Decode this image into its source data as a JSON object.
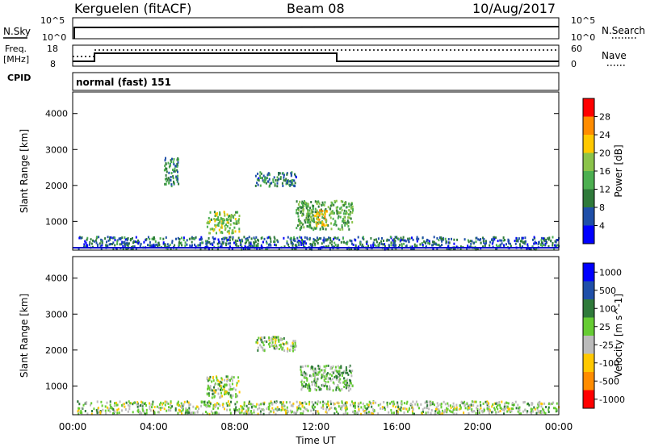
{
  "header": {
    "station": "Kerguelen (fitACF)",
    "beam": "Beam 08",
    "date": "10/Aug/2017"
  },
  "panels": {
    "nsky": {
      "label": "N.Sky",
      "ticks": [
        "10^5",
        "10^0"
      ],
      "right_label": "N.Search",
      "right_ticks": [
        "10^5",
        "10^0"
      ]
    },
    "freq": {
      "label_line1": "Freq.",
      "label_line2": "[MHz]",
      "ticks": [
        "18",
        "8"
      ],
      "right_label": "Nave",
      "right_ticks": [
        "60",
        "0"
      ]
    },
    "cpid": {
      "label": "CPID",
      "text": "normal (fast) 151"
    }
  },
  "colors": {
    "power_scale": [
      "#0000ff",
      "#1f4fa8",
      "#2f7a3a",
      "#4caf50",
      "#8bc34a",
      "#ffc800",
      "#ff8c00",
      "#ff0000"
    ],
    "velocity_scale": [
      "#0000ff",
      "#1f4fa8",
      "#2f7a3a",
      "#66cc33",
      "#bbbbbb",
      "#ffc800",
      "#ff8c00",
      "#ff0000"
    ]
  },
  "chart_data": [
    {
      "type": "heatmap",
      "title": "",
      "xlabel": "",
      "ylabel": "Slant Range [km]",
      "xlim": [
        0,
        24
      ],
      "ylim": [
        200,
        4600
      ],
      "x_tick_labels": [],
      "y_ticks": [
        1000,
        2000,
        3000,
        4000
      ],
      "colorbar": {
        "label": "Power [dB]",
        "ticks": [
          "4",
          "8",
          "12",
          "16",
          "20",
          "24",
          "28"
        ],
        "range": [
          0,
          32
        ]
      },
      "blobs": [
        {
          "start_ut": 6.6,
          "end_ut": 8.2,
          "range_min": 700,
          "range_max": 1300,
          "value": 17
        },
        {
          "start_ut": 11.0,
          "end_ut": 13.8,
          "range_min": 800,
          "range_max": 1600,
          "value": 14
        },
        {
          "start_ut": 11.9,
          "end_ut": 12.6,
          "range_min": 900,
          "range_max": 1350,
          "value": 22
        },
        {
          "start_ut": 9.0,
          "end_ut": 11.0,
          "range_min": 2000,
          "range_max": 2400,
          "value": 9
        },
        {
          "start_ut": 4.5,
          "end_ut": 5.2,
          "range_min": 2000,
          "range_max": 2800,
          "value": 10
        },
        {
          "start_ut": 0.2,
          "end_ut": 24.0,
          "range_min": 250,
          "range_max": 600,
          "value": 8
        }
      ]
    },
    {
      "type": "heatmap",
      "title": "",
      "xlabel": "Time UT",
      "ylabel": "Slant Range [km]",
      "xlim": [
        0,
        24
      ],
      "ylim": [
        200,
        4600
      ],
      "x_tick_labels": [
        "00:00",
        "04:00",
        "08:00",
        "12:00",
        "16:00",
        "20:00",
        "00:00"
      ],
      "y_ticks": [
        1000,
        2000,
        3000,
        4000
      ],
      "colorbar": {
        "label": "Velocity [m s^-1]",
        "ticks": [
          "1000",
          "500",
          "100",
          "25",
          "-25",
          "-100",
          "-500",
          "-1000"
        ],
        "range": [
          -1000,
          1000
        ]
      },
      "blobs": [
        {
          "start_ut": 6.6,
          "end_ut": 8.2,
          "range_min": 700,
          "range_max": 1300,
          "value": 0
        },
        {
          "start_ut": 11.2,
          "end_ut": 13.8,
          "range_min": 900,
          "range_max": 1600,
          "value": 120
        },
        {
          "start_ut": 9.0,
          "end_ut": 11.0,
          "range_min": 2000,
          "range_max": 2400,
          "value": 0
        },
        {
          "start_ut": 0.2,
          "end_ut": 24.0,
          "range_min": 250,
          "range_max": 600,
          "value": 0
        }
      ]
    }
  ]
}
